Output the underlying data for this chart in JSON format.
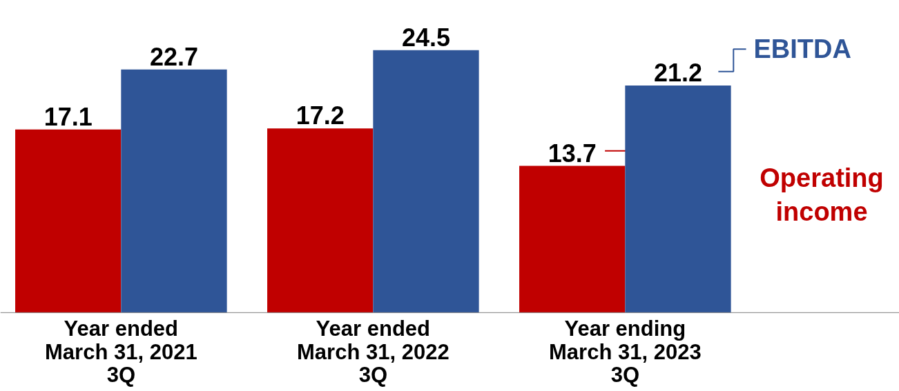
{
  "chart_data": {
    "type": "bar",
    "categories": [
      "Year ended\nMarch 31, 2021\n3Q",
      "Year ended\nMarch 31, 2022\n3Q",
      "Year ending\nMarch 31, 2023\n3Q"
    ],
    "series": [
      {
        "name": "Operating income",
        "color": "#c00000",
        "values": [
          17.1,
          17.2,
          13.7
        ]
      },
      {
        "name": "EBITDA",
        "color": "#2f5597",
        "values": [
          22.7,
          24.5,
          21.2
        ]
      }
    ],
    "data_labels": true,
    "legend": "right",
    "grid": false
  }
}
